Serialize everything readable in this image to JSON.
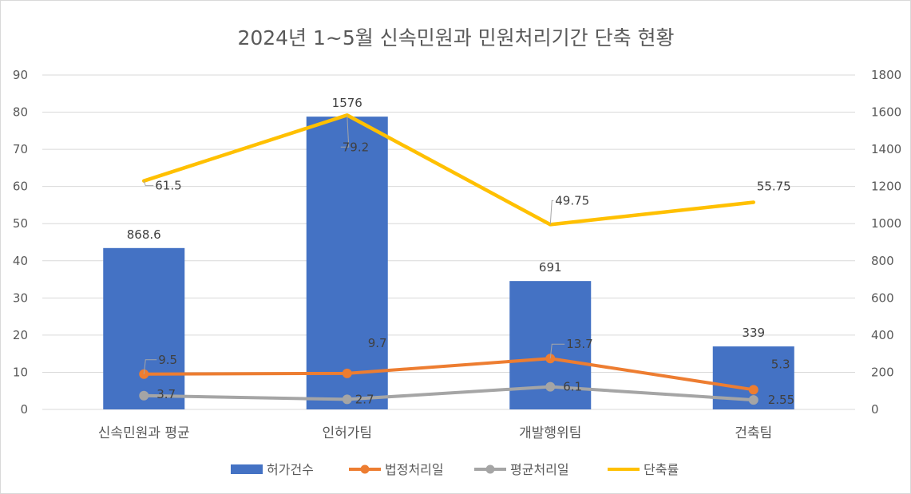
{
  "chart_data": {
    "type": "bar",
    "title": "2024년 1~5월 신속민원과 민원처리기간 단축 현황",
    "categories": [
      "신속민원과 평균",
      "인허가팀",
      "개발행위팀",
      "건축팀"
    ],
    "y_left": {
      "ylim": [
        0,
        90
      ],
      "ticks": [
        "0",
        "10",
        "20",
        "30",
        "40",
        "50",
        "60",
        "70",
        "80",
        "90"
      ]
    },
    "y_right": {
      "ylim": [
        0,
        1800
      ],
      "ticks": [
        "0",
        "200",
        "400",
        "600",
        "800",
        "1000",
        "1200",
        "1400",
        "1600",
        "1800"
      ]
    },
    "grid": true,
    "legend_position": "bottom",
    "series": [
      {
        "name": "허가건수",
        "kind": "bar",
        "axis": "right",
        "color": "#4472C4",
        "values": [
          868.6,
          1576,
          691,
          339
        ],
        "labels": [
          "868.6",
          "1576",
          "691",
          "339"
        ]
      },
      {
        "name": "법정처리일",
        "kind": "line-marker",
        "axis": "left",
        "color": "#ED7D31",
        "values": [
          9.5,
          9.7,
          13.7,
          5.3
        ],
        "labels": [
          "9.5",
          "9.7",
          "13.7",
          "5.3"
        ]
      },
      {
        "name": "평균처리일",
        "kind": "line-marker",
        "axis": "left",
        "color": "#A5A5A5",
        "values": [
          3.7,
          2.7,
          6.1,
          2.55
        ],
        "labels": [
          "3.7",
          "2.7",
          "6.1",
          "2.55"
        ]
      },
      {
        "name": "단축률",
        "kind": "line",
        "axis": "left",
        "color": "#FFC000",
        "values": [
          61.5,
          79.2,
          49.75,
          55.75
        ],
        "labels": [
          "61.5",
          "79.2",
          "49.75",
          "55.75"
        ]
      }
    ]
  }
}
